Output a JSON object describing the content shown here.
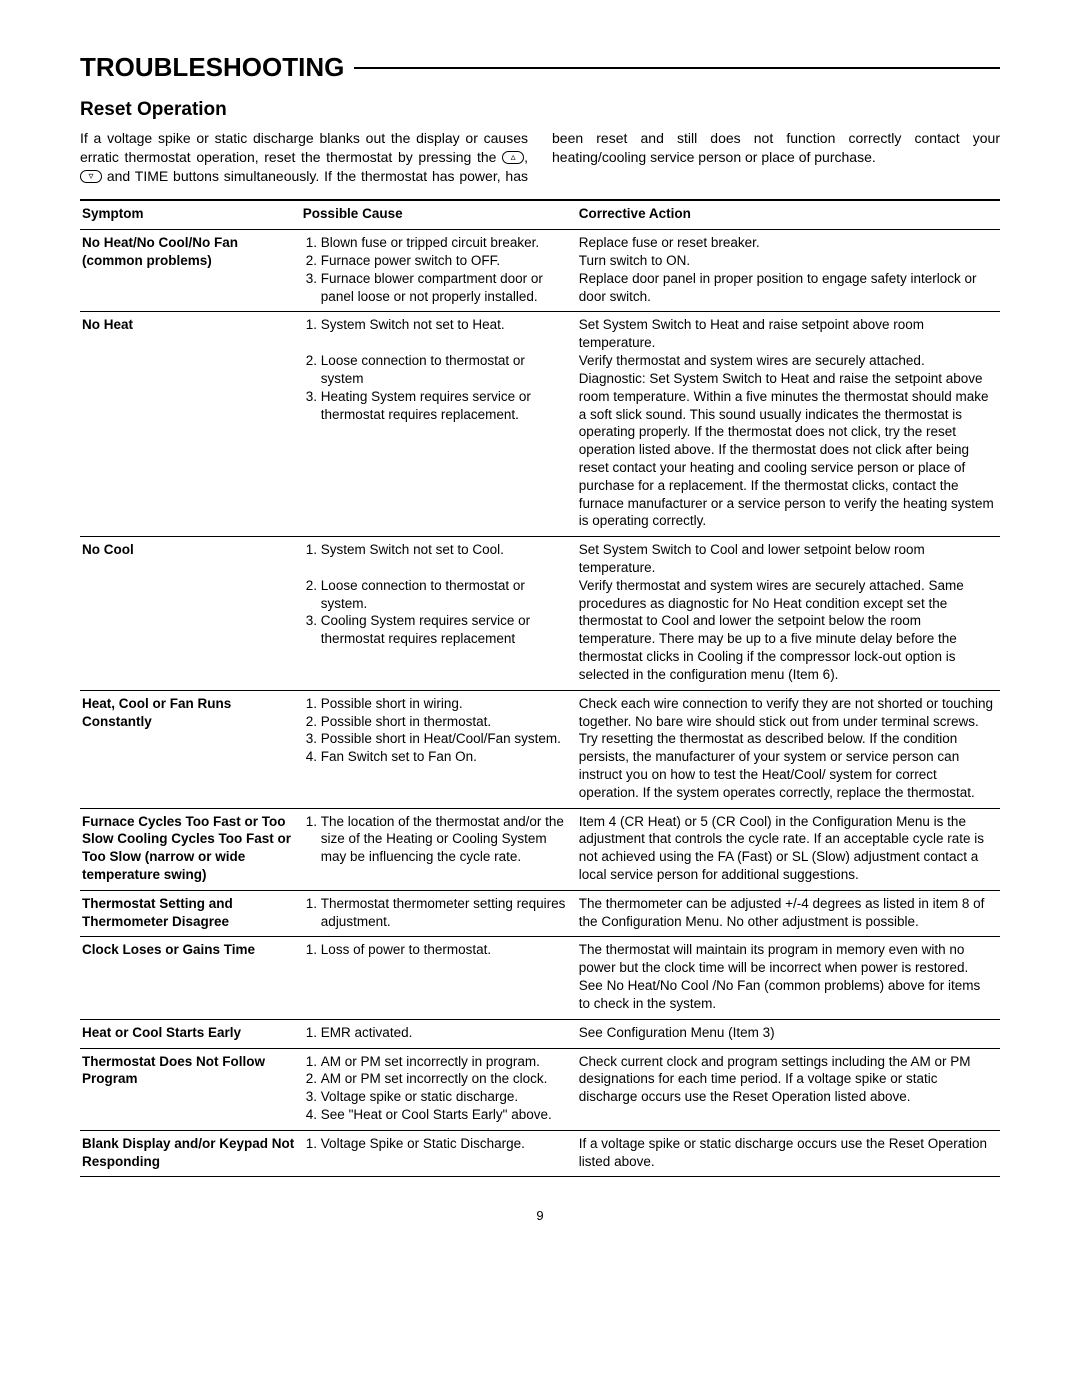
{
  "section_title": "TROUBLESHOOTING",
  "subtitle": "Reset Operation",
  "intro_part1": "If a voltage spike or static discharge blanks out the display or causes erratic thermostat operation, reset the thermostat by pressing the ",
  "intro_part2": " and TIME buttons simultaneously.",
  "intro_part3": "If the thermostat has power, has been reset and still does not function correctly contact your heating/cooling service person or place of purchase.",
  "headers": {
    "symptom": "Symptom",
    "cause": "Possible Cause",
    "action": "Corrective Action"
  },
  "rows": [
    {
      "symptom": "No Heat/No Cool/No Fan (common problems)",
      "cause": "<ol class='cause'><li>Blown fuse or tripped circuit breaker.</li><li>Furnace power switch to OFF.</li><li>Furnace blower compartment door or panel loose or not properly installed.</li></ol>",
      "action": "Replace fuse or reset breaker.<br>Turn switch to ON.<br>Replace door panel in proper position to engage safety interlock or door switch."
    },
    {
      "symptom": "No Heat",
      "cause": "<ol class='cause'><li>System Switch not set to Heat.<br>&nbsp;</li><li>Loose connection to thermostat or system</li><li>Heating System requires service or thermostat requires replacement.</li></ol>",
      "action": "Set System Switch to Heat and raise setpoint above room temperature.<br>Verify thermostat and system wires are securely attached. Diagnostic: Set System Switch to Heat and raise the setpoint above room temperature. Within a five minutes the thermostat should make a soft slick sound. This sound usually indicates the thermostat is operating properly. If the thermostat does not click, try the reset operation listed above. If the thermostat does not click after being reset contact your heating and cooling service person or place of purchase for a replacement. If the thermostat clicks, contact the furnace manufacturer or a service person to verify the heating system is operating correctly."
    },
    {
      "symptom": "No Cool",
      "cause": "<ol class='cause'><li>System Switch not set to Cool.<br>&nbsp;</li><li>Loose connection to thermostat or system.</li><li>Cooling System requires service or thermostat requires replacement</li></ol>",
      "action": "Set System Switch to Cool and lower setpoint below room temperature.<br>Verify thermostat and system wires are securely attached. Same procedures as diagnostic for No Heat condition except set the thermostat to Cool and lower the setpoint below the room temperature. There may be up to a five minute delay before the thermostat clicks in Cooling if the compressor lock-out option is selected in the configuration menu (Item 6)."
    },
    {
      "symptom": "Heat, Cool or Fan Runs Constantly",
      "cause": "<ol class='cause'><li>Possible short in wiring.</li><li>Possible short in thermostat.</li><li>Possible short in Heat/Cool/Fan system.</li><li>Fan Switch set to Fan On.</li></ol>",
      "action": "Check each wire connection to verify they are not shorted or touching together. No bare wire should stick out from under terminal screws. Try resetting the thermostat as described below. If the condition persists, the manufacturer of your system or service person can instruct you on how to test the Heat/Cool/ system for correct operation. If the system operates correctly, replace the thermostat."
    },
    {
      "symptom": "Furnace Cycles Too Fast or Too Slow Cooling Cycles Too Fast or Too Slow (narrow or wide temperature swing)",
      "cause": "<ol class='cause'><li>The location of the thermostat and/or the size of the Heating or Cooling System may be influencing the cycle rate.</li></ol>",
      "action": "Item 4 (CR Heat) or 5 (CR Cool) in the Configuration Menu is the adjustment that controls the cycle rate. If an acceptable cycle rate is not achieved using the FA (Fast) or SL (Slow) adjustment contact a local service person for additional suggestions."
    },
    {
      "symptom": "Thermostat Setting and Thermometer Disagree",
      "cause": "<ol class='cause'><li>Thermostat thermometer setting requires adjustment.</li></ol>",
      "action": "The thermometer can be adjusted +/-4 degrees as listed in item 8 of the Configuration Menu. No other adjustment is possible."
    },
    {
      "symptom": "Clock Loses or Gains Time",
      "cause": "<ol class='cause'><li>Loss of power to thermostat.</li></ol>",
      "action": "The thermostat will maintain its program in memory even with no power but the clock time will be incorrect when power is restored. See No Heat/No Cool /No Fan (common problems) above for items to check in the system."
    },
    {
      "symptom": "Heat or Cool Starts Early",
      "cause": "<ol class='cause'><li>EMR activated.</li></ol>",
      "action": "See Configuration Menu (Item 3)"
    },
    {
      "symptom": "Thermostat Does Not Follow Program",
      "cause": "<ol class='cause'><li>AM or PM set incorrectly in program.</li><li>AM or PM set incorrectly on the clock.</li><li>Voltage spike or static discharge.</li><li>See \"Heat or Cool Starts Early\" above.</li></ol>",
      "action": "Check current clock and program settings including the AM or PM designations for each time period. If a voltage spike or static discharge occurs use the Reset Operation listed above."
    },
    {
      "symptom": "Blank Display and/or Keypad Not Responding",
      "cause": "<ol class='cause'><li>Voltage Spike or Static Discharge.</li></ol>",
      "action": "If a voltage spike or static discharge occurs use the Reset Operation listed above."
    }
  ],
  "page_number": "9"
}
